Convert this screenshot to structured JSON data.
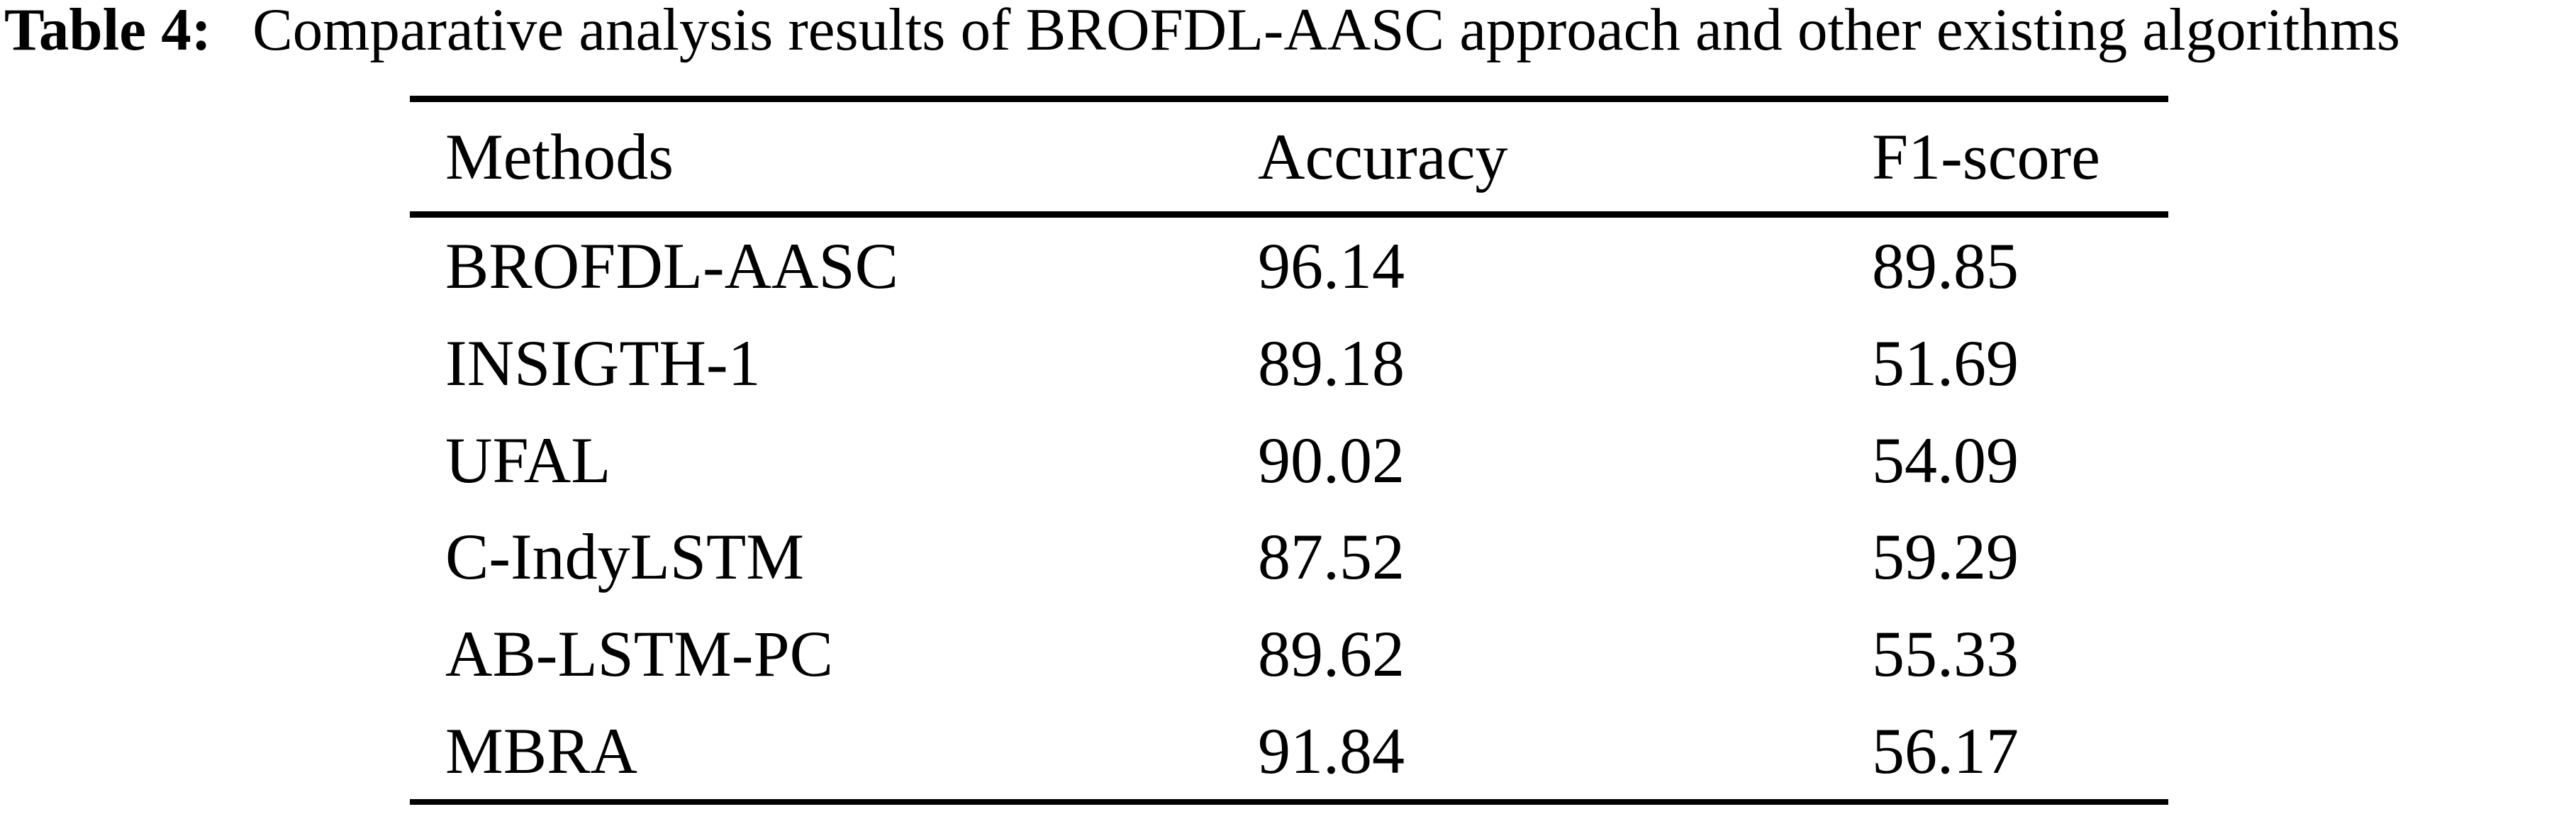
{
  "caption": {
    "label": "Table 4:",
    "text": "Comparative analysis results of BROFDL-AASC approach and other existing algorithms"
  },
  "table": {
    "columns": [
      "Methods",
      "Accuracy",
      "F1-score"
    ],
    "rows": [
      {
        "method": "BROFDL-AASC",
        "accuracy": "96.14",
        "f1_score": "89.85"
      },
      {
        "method": "INSIGTH-1",
        "accuracy": "89.18",
        "f1_score": "51.69"
      },
      {
        "method": "UFAL",
        "accuracy": "90.02",
        "f1_score": "54.09"
      },
      {
        "method": "C-IndyLSTM",
        "accuracy": "87.52",
        "f1_score": "59.29"
      },
      {
        "method": "AB-LSTM-PC",
        "accuracy": "89.62",
        "f1_score": "55.33"
      },
      {
        "method": "MBRA",
        "accuracy": "91.84",
        "f1_score": "56.17"
      }
    ]
  },
  "chart_data": {
    "type": "table",
    "title": "Table 4: Comparative analysis results of BROFDL-AASC approach and other existing algorithms",
    "categories": [
      "BROFDL-AASC",
      "INSIGTH-1",
      "UFAL",
      "C-IndyLSTM",
      "AB-LSTM-PC",
      "MBRA"
    ],
    "series": [
      {
        "name": "Accuracy",
        "values": [
          96.14,
          89.18,
          90.02,
          87.52,
          89.62,
          91.84
        ]
      },
      {
        "name": "F1-score",
        "values": [
          89.85,
          51.69,
          54.09,
          59.29,
          55.33,
          56.17
        ]
      }
    ]
  },
  "colors": {
    "text": "#000000",
    "background": "#ffffff",
    "rule": "#000000"
  }
}
